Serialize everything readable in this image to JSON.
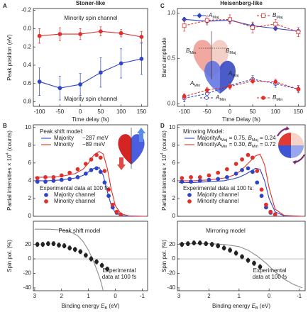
{
  "chart_data": [
    {
      "type": "line",
      "panel": "A",
      "header": "Stoner-like",
      "x_label": "Time delay (fs)",
      "y_label": "Peak position (eV)",
      "x": [
        -100,
        -50,
        0,
        50,
        100,
        150
      ],
      "xlim": [
        -115,
        165
      ],
      "xticks": [
        -100,
        -50,
        0,
        50,
        100,
        150
      ],
      "ylim": [
        0.85,
        -0.22
      ],
      "yticks": [
        -0.2,
        {
          "value": 0,
          "label": "0.0"
        },
        0.2,
        0.4,
        0.6,
        0.8
      ],
      "series": [
        {
          "color": "#e0302c",
          "mode": "lines+markers",
          "marker": "circle",
          "filled": true,
          "values": [
            0.08,
            0.06,
            0.06,
            0.03,
            0.05,
            0.09
          ],
          "errors": [
            0.08,
            0.07,
            0.06,
            0.05,
            0.04,
            0.06
          ]
        },
        {
          "color": "#2f45c8",
          "mode": "lines+markers",
          "marker": "circle",
          "filled": true,
          "values": [
            0.58,
            0.65,
            0.61,
            0.48,
            0.38,
            0.33
          ],
          "errors": [
            0.15,
            0.13,
            0.12,
            0.16,
            0.16,
            0.17
          ]
        }
      ],
      "annotations": [
        {
          "text": [
            "Minority spin channel"
          ],
          "color": "#e0302c"
        },
        {
          "text": [
            "Majority spin channel"
          ],
          "color": "#2f45c8"
        }
      ]
    },
    {
      "type": "line",
      "panel": "B",
      "y_label": [
        {
          "t": "Partial intensities × 10"
        },
        {
          "t": "4",
          "sup": true
        },
        {
          "t": " (counts)"
        }
      ],
      "xlim": [
        3.05,
        -1.2
      ],
      "ylim": [
        0,
        10.3
      ],
      "yticks": [
        0,
        2,
        4,
        6,
        8,
        10
      ],
      "legend_titles": [
        "Peak shift model:",
        "Experimental data at 100 fs:"
      ],
      "series": [
        {
          "name": "Majority",
          "note": [
            {
              "t": "−287 meV"
            }
          ],
          "group": 0,
          "color": "#2f45c8",
          "mode": "lines",
          "x": [
            3,
            2.5,
            2,
            1.5,
            1.2,
            1.0,
            0.8,
            0.6,
            0.45,
            0.3,
            0.15,
            0,
            -0.2,
            -0.5,
            -1.1
          ],
          "values": [
            4.0,
            4.0,
            4.1,
            4.3,
            4.6,
            5.0,
            5.4,
            5.5,
            4.6,
            2.8,
            1.2,
            0.4,
            0.1,
            0,
            0
          ]
        },
        {
          "name": "Minority",
          "note": [
            {
              "t": "−89 meV"
            }
          ],
          "group": 0,
          "color": "#e0302c",
          "mode": "lines",
          "x": [
            3,
            2.5,
            2,
            1.5,
            1.2,
            1.0,
            0.8,
            0.6,
            0.45,
            0.3,
            0.15,
            0,
            -0.2,
            -0.5,
            -1.1
          ],
          "values": [
            4.4,
            4.4,
            4.5,
            4.8,
            5.3,
            6.0,
            6.9,
            7.3,
            7.0,
            5.4,
            3.0,
            1.2,
            0.3,
            0.05,
            0
          ]
        },
        {
          "name": "Majority channel",
          "group": 1,
          "color": "#2f45c8",
          "mode": "markers",
          "marker": "circle",
          "filled": true,
          "x": [
            2.9,
            2.6,
            2.3,
            2.0,
            1.7,
            1.4,
            1.1,
            0.9,
            0.7,
            0.55,
            0.4,
            0.25,
            0.1,
            -0.05,
            -0.2
          ],
          "values": [
            3.9,
            3.9,
            4.0,
            4.1,
            4.2,
            4.4,
            4.8,
            5.2,
            5.4,
            5.0,
            3.8,
            2.3,
            1.0,
            0.4,
            0.2
          ]
        },
        {
          "name": "Minority channel",
          "group": 1,
          "color": "#e0302c",
          "mode": "markers",
          "marker": "circle",
          "filled": true,
          "x": [
            2.9,
            2.6,
            2.3,
            2.0,
            1.7,
            1.4,
            1.1,
            0.9,
            0.7,
            0.55,
            0.4,
            0.25,
            0.1,
            -0.05,
            -0.2
          ],
          "values": [
            4.3,
            4.4,
            4.4,
            4.6,
            4.9,
            5.3,
            5.9,
            6.4,
            6.9,
            6.6,
            5.1,
            3.0,
            1.3,
            0.5,
            0.2
          ]
        }
      ]
    },
    {
      "type": "line",
      "y_label": "Spin pol. (%)",
      "x_label": [
        {
          "t": "Binding energy "
        },
        {
          "t": "E",
          "i": true
        },
        {
          "t": "B",
          "sub": true
        },
        {
          "t": " (eV)"
        }
      ],
      "xlim": [
        3.05,
        -1.2
      ],
      "xticks": [
        3,
        2,
        1,
        0,
        -1
      ],
      "ylim": [
        -44,
        52
      ],
      "yticks": [
        20,
        0,
        -20,
        -40
      ],
      "zero_line": true,
      "series": [
        {
          "color": "#8c8c8c",
          "mode": "lines",
          "x": [
            3,
            2.5,
            2,
            1.7,
            1.4,
            1.2,
            1.0,
            0.85,
            0.7,
            0.55,
            0.45
          ],
          "values": [
            41,
            41,
            40,
            38,
            32,
            24,
            12,
            0,
            -14,
            -30,
            -44
          ]
        },
        {
          "color": "#222222",
          "mode": "markers",
          "marker": "circle",
          "filled": true,
          "x": [
            2.9,
            2.7,
            2.5,
            2.3,
            2.1,
            1.9,
            1.7,
            1.5,
            1.3,
            1.1,
            0.9,
            0.7,
            0.5,
            0.3
          ],
          "values": [
            20,
            20,
            21,
            21,
            19,
            18,
            15,
            13,
            10,
            5,
            0,
            -4,
            -9,
            -14
          ],
          "errors": [
            3,
            3,
            3,
            3,
            3,
            3,
            3,
            3,
            3,
            3,
            3,
            3,
            3,
            3
          ]
        }
      ],
      "annotations": [
        {
          "text": [
            "Peak shift model"
          ],
          "color": "#8c8c8c"
        },
        {
          "text": [
            "Experimental",
            "data at 100 fs"
          ],
          "color": "#222222"
        }
      ]
    },
    {
      "type": "line",
      "panel": "C",
      "header": "Heisenberg-like",
      "x_label": "Time Delay (fs)",
      "y_label": "Band amplitude",
      "x": [
        -100,
        -50,
        0,
        50,
        100,
        150
      ],
      "xlim": [
        -115,
        165
      ],
      "xticks": [
        -100,
        -50,
        0,
        50,
        100,
        150
      ],
      "ylim": [
        -0.03,
        1.05
      ],
      "yticks": [
        {
          "value": 0,
          "label": "0.0"
        },
        0.5,
        {
          "value": 1,
          "label": "1.0"
        }
      ],
      "series": [
        {
          "name": [
            {
              "t": "A",
              "i": true
            },
            {
              "t": "Maj",
              "sub": true
            }
          ],
          "color": "#2f45c8",
          "mode": "lines+markers",
          "marker": "diamond",
          "filled": true,
          "values": [
            0.93,
            0.91,
            0.92,
            0.86,
            0.83,
            0.8
          ],
          "errors": [
            0.02,
            0.02,
            0.02,
            0.03,
            0.02,
            0.02
          ]
        },
        {
          "name": [
            {
              "t": "B",
              "i": true
            },
            {
              "t": "Maj",
              "sub": true
            }
          ],
          "color": "#e0302c",
          "mode": "lines+markers",
          "dash": true,
          "marker": "square",
          "filled": false,
          "values": [
            0.86,
            0.92,
            0.93,
            0.84,
            0.88,
            0.79
          ],
          "errors": [
            0.06,
            0.05,
            0.05,
            0.06,
            0.05,
            0.05
          ]
        },
        {
          "name": [
            {
              "t": "A",
              "i": true
            },
            {
              "t": "Min",
              "sub": true
            }
          ],
          "color": "#2f45c8",
          "mode": "lines+markers",
          "dash": true,
          "marker": "circle",
          "filled": false,
          "values": [
            0.06,
            0.11,
            0.2,
            0.27,
            0.22,
            0.16
          ],
          "errors": [
            0.04,
            0.04,
            0.04,
            0.04,
            0.04,
            0.04
          ]
        },
        {
          "name": [
            {
              "t": "B",
              "i": true
            },
            {
              "t": "Min",
              "sub": true
            }
          ],
          "color": "#e0302c",
          "mode": "lines+markers",
          "dash": true,
          "marker": "circle",
          "filled": true,
          "values": [
            0.08,
            0.15,
            0.19,
            0.25,
            0.24,
            0.16
          ],
          "errors": [
            0.03,
            0.03,
            0.03,
            0.03,
            0.03,
            0.03
          ]
        }
      ]
    },
    {
      "type": "line",
      "panel": "D",
      "y_label": [
        {
          "t": "Partial intensities × 10"
        },
        {
          "t": "4",
          "sup": true
        },
        {
          "t": " (counts)"
        }
      ],
      "xlim": [
        3.05,
        -1.2
      ],
      "ylim": [
        0,
        10.3
      ],
      "yticks": [
        0,
        2,
        4,
        6,
        8,
        10
      ],
      "legend_titles": [
        "Mirroring Model:",
        "Experimental data at 100 fs:"
      ],
      "series": [
        {
          "name": "Majority:",
          "note": [
            {
              "t": " "
            },
            {
              "t": "A",
              "i": true
            },
            {
              "t": "Maj",
              "sub": true
            },
            {
              "t": " = 0.75, "
            },
            {
              "t": "B",
              "i": true
            },
            {
              "t": "Maj",
              "sub": true
            },
            {
              "t": " = 0.24"
            }
          ],
          "group": 0,
          "color": "#2f45c8",
          "mode": "lines",
          "x": [
            3,
            2.5,
            2,
            1.5,
            1.2,
            1.0,
            0.8,
            0.6,
            0.45,
            0.3,
            0.15,
            0,
            -0.2,
            -0.5,
            -1.1
          ],
          "values": [
            3.8,
            3.8,
            3.9,
            4.0,
            4.2,
            4.4,
            4.7,
            5.1,
            5.4,
            5.3,
            4.0,
            2.0,
            0.5,
            0.05,
            0
          ]
        },
        {
          "name": "Minority:",
          "note": [
            {
              "t": " "
            },
            {
              "t": "A",
              "i": true
            },
            {
              "t": "Min",
              "sub": true
            },
            {
              "t": " = 0.30, "
            },
            {
              "t": "B",
              "i": true
            },
            {
              "t": "Min",
              "sub": true
            },
            {
              "t": " = 0.72"
            }
          ],
          "group": 0,
          "color": "#e0302c",
          "mode": "lines",
          "x": [
            3,
            2.5,
            2,
            1.5,
            1.2,
            1.0,
            0.8,
            0.6,
            0.45,
            0.3,
            0.15,
            0,
            -0.2,
            -0.5,
            -1.1
          ],
          "values": [
            4.0,
            4.0,
            4.1,
            4.3,
            4.6,
            5.0,
            5.6,
            6.3,
            6.8,
            7.0,
            5.8,
            3.2,
            0.8,
            0.1,
            0
          ]
        },
        {
          "name": "Majority channel",
          "group": 1,
          "color": "#2f45c8",
          "mode": "markers",
          "marker": "circle",
          "filled": true,
          "x": [
            2.9,
            2.6,
            2.3,
            2.0,
            1.7,
            1.4,
            1.1,
            0.9,
            0.7,
            0.55,
            0.4,
            0.25,
            0.1,
            -0.05,
            -0.2
          ],
          "values": [
            3.9,
            3.9,
            4.0,
            4.1,
            4.2,
            4.4,
            4.8,
            5.2,
            5.4,
            5.0,
            3.8,
            2.3,
            1.0,
            0.4,
            0.2
          ]
        },
        {
          "name": "Minority channel",
          "group": 1,
          "color": "#e0302c",
          "mode": "markers",
          "marker": "circle",
          "filled": true,
          "x": [
            2.9,
            2.6,
            2.3,
            2.0,
            1.7,
            1.4,
            1.1,
            0.9,
            0.7,
            0.55,
            0.4,
            0.25,
            0.1,
            -0.05,
            -0.2
          ],
          "values": [
            4.3,
            4.4,
            4.4,
            4.6,
            4.9,
            5.3,
            5.9,
            6.4,
            6.9,
            6.6,
            5.1,
            3.0,
            1.3,
            0.5,
            0.2
          ]
        }
      ]
    },
    {
      "type": "line",
      "y_label": "Spin pol. (%)",
      "x_label": [
        {
          "t": "Binding energy "
        },
        {
          "t": "E",
          "i": true
        },
        {
          "t": "B",
          "sub": true
        },
        {
          "t": " (eV)"
        }
      ],
      "xlim": [
        3.05,
        -1.2
      ],
      "xticks": [
        3,
        2,
        1,
        0,
        -1
      ],
      "ylim": [
        -44,
        52
      ],
      "yticks": [
        20,
        0,
        -20,
        -40
      ],
      "zero_line": true,
      "series": [
        {
          "color": "#8c8c8c",
          "mode": "lines",
          "x": [
            3,
            2.5,
            2,
            1.5,
            1.0,
            0.7,
            0.4,
            0.1,
            -0.2,
            -0.5,
            -0.8,
            -1.1
          ],
          "values": [
            21,
            21,
            21,
            20,
            17,
            12,
            4,
            -6,
            -18,
            -28,
            -35,
            -40
          ]
        },
        {
          "color": "#222222",
          "mode": "markers",
          "marker": "circle",
          "filled": true,
          "x": [
            2.9,
            2.7,
            2.5,
            2.3,
            2.1,
            1.9,
            1.7,
            1.5,
            1.3,
            1.1,
            0.9,
            0.7,
            0.5,
            0.3
          ],
          "values": [
            20,
            21,
            22,
            22,
            21,
            20,
            18,
            15,
            12,
            8,
            3,
            -2,
            -6,
            -11
          ],
          "errors": [
            3,
            3,
            3,
            3,
            3,
            3,
            3,
            3,
            3,
            3,
            3,
            3,
            3,
            3
          ]
        }
      ],
      "annotations": [
        {
          "text": [
            "Mirroring model"
          ],
          "color": "#8c8c8c"
        },
        {
          "text": [
            "Experimental",
            "data at 100 fs"
          ],
          "color": "#222222"
        }
      ]
    }
  ]
}
